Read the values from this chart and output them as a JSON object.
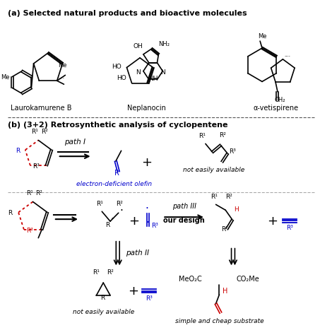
{
  "title_a": "(a) Selected natural products and bioactive molecules",
  "title_b": "(b) (3+2) Retrosynthetic analysis of cyclopentene",
  "compound_names": [
    "Laurokamurene B",
    "Neplanocin",
    "α-vetispirene"
  ],
  "path_labels": [
    "path I",
    "path II",
    "path III"
  ],
  "our_design": "our design",
  "blue_label1": "electron-deficient olefin",
  "black_label1": "not easily available",
  "black_label2": "not easily available",
  "black_label3": "simple and cheap substrate",
  "fig_width": 4.53,
  "fig_height": 4.74,
  "dpi": 100,
  "bg_color": "#ffffff",
  "text_color": "#000000",
  "blue_color": "#0000cc",
  "red_color": "#cc0000"
}
